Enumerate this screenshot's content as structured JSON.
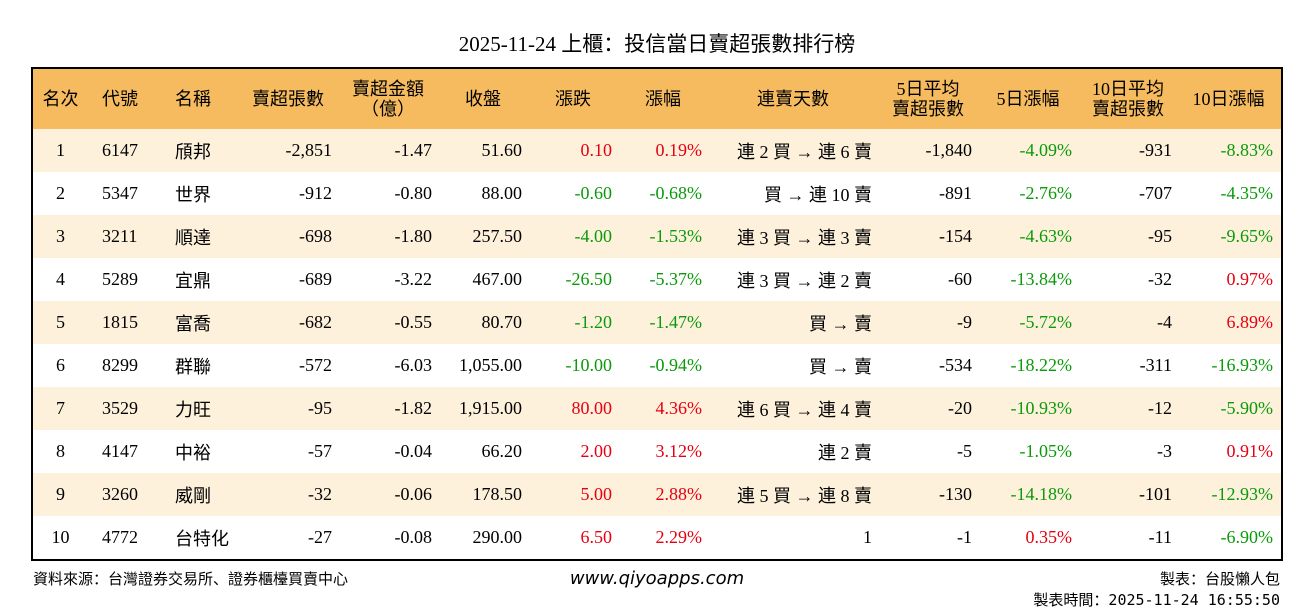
{
  "title": "2025-11-24 上櫃：投信當日賣超張數排行榜",
  "table": {
    "header": [
      "名次",
      "代號",
      "名稱",
      "賣超張數",
      "賣超金額\n（億）",
      "收盤",
      "漲跌",
      "漲幅",
      "連賣天數",
      "5日平均\n賣超張數",
      "5日漲幅",
      "10日平均\n賣超張數",
      "10日漲幅"
    ],
    "rows": [
      [
        "1",
        "6147",
        "頎邦",
        "-2,851",
        "-1.47",
        "51.60",
        "0.10",
        "0.19%",
        "連 2 買 → 連 6 賣",
        "-1,840",
        "-4.09%",
        "-931",
        "-8.83%"
      ],
      [
        "2",
        "5347",
        "世界",
        "-912",
        "-0.80",
        "88.00",
        "-0.60",
        "-0.68%",
        "買 → 連 10 賣",
        "-891",
        "-2.76%",
        "-707",
        "-4.35%"
      ],
      [
        "3",
        "3211",
        "順達",
        "-698",
        "-1.80",
        "257.50",
        "-4.00",
        "-1.53%",
        "連 3 買 → 連 3 賣",
        "-154",
        "-4.63%",
        "-95",
        "-9.65%"
      ],
      [
        "4",
        "5289",
        "宜鼎",
        "-689",
        "-3.22",
        "467.00",
        "-26.50",
        "-5.37%",
        "連 3 買 → 連 2 賣",
        "-60",
        "-13.84%",
        "-32",
        "0.97%"
      ],
      [
        "5",
        "1815",
        "富喬",
        "-682",
        "-0.55",
        "80.70",
        "-1.20",
        "-1.47%",
        "買 → 賣",
        "-9",
        "-5.72%",
        "-4",
        "6.89%"
      ],
      [
        "6",
        "8299",
        "群聯",
        "-572",
        "-6.03",
        "1,055.00",
        "-10.00",
        "-0.94%",
        "買 → 賣",
        "-534",
        "-18.22%",
        "-311",
        "-16.93%"
      ],
      [
        "7",
        "3529",
        "力旺",
        "-95",
        "-1.82",
        "1,915.00",
        "80.00",
        "4.36%",
        "連 6 買 → 連 4 賣",
        "-20",
        "-10.93%",
        "-12",
        "-5.90%"
      ],
      [
        "8",
        "4147",
        "中裕",
        "-57",
        "-0.04",
        "66.20",
        "2.00",
        "3.12%",
        "連 2 賣",
        "-5",
        "-1.05%",
        "-3",
        "0.91%"
      ],
      [
        "9",
        "3260",
        "威剛",
        "-32",
        "-0.06",
        "178.50",
        "5.00",
        "2.88%",
        "連 5 買 → 連 8 賣",
        "-130",
        "-14.18%",
        "-101",
        "-12.93%"
      ],
      [
        "10",
        "4772",
        "台特化",
        "-27",
        "-0.08",
        "290.00",
        "6.50",
        "2.29%",
        "1",
        "-1",
        "0.35%",
        "-11",
        "-6.90%"
      ]
    ]
  },
  "footer": {
    "source": "資料來源：台灣證券交易所、證券櫃檯買賣中心",
    "website": "www.qiyoapps.com",
    "maker": "製表：台股懶人包",
    "time": "製表時間：2025-11-24 16:55:50"
  }
}
